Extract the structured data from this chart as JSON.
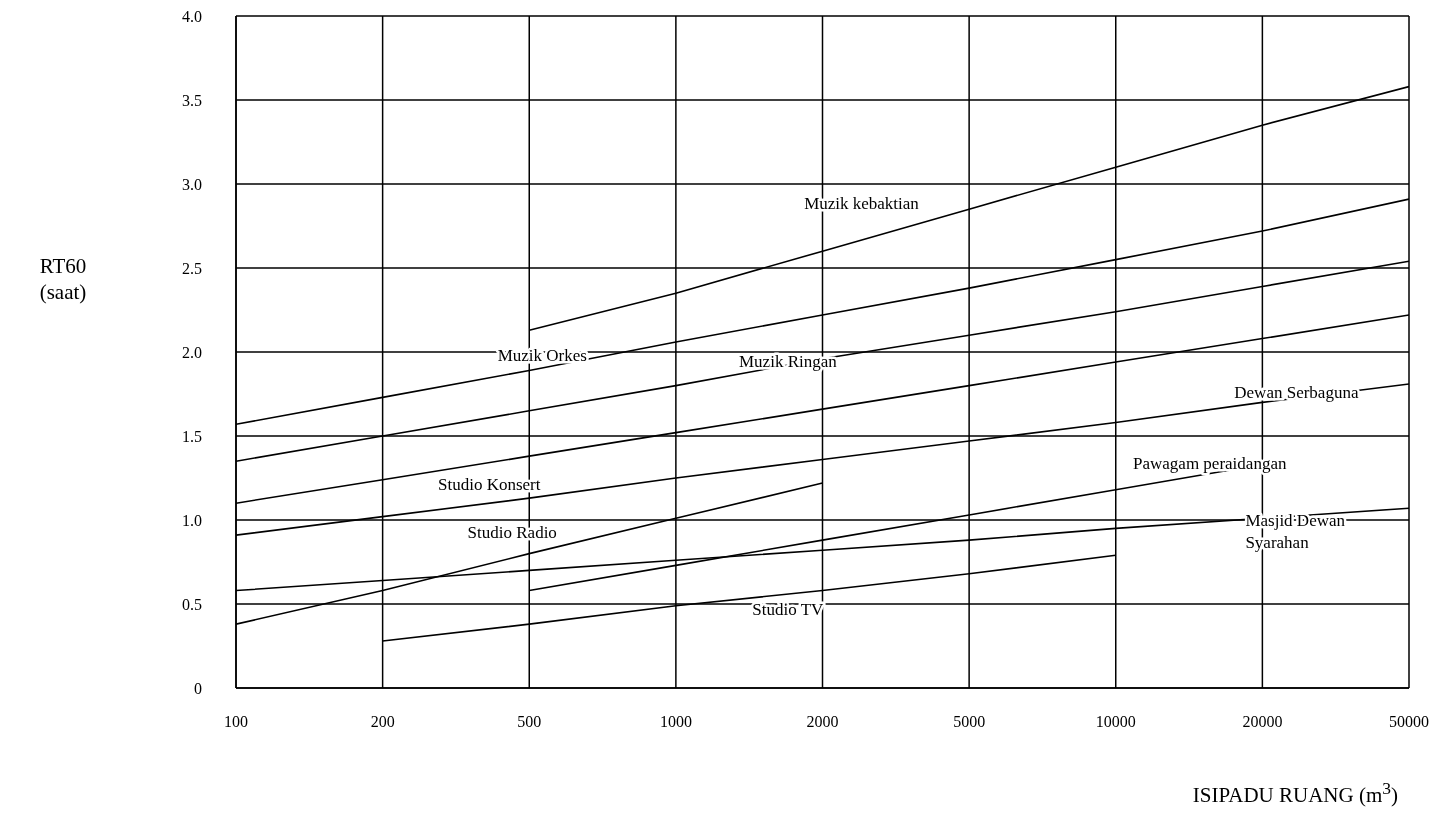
{
  "chart_data": {
    "type": "line",
    "xlabel": "ISIPADU RUANG (m$^{3}$)",
    "ylabel": "RT60 (saat)",
    "categories": [
      "100",
      "200",
      "500",
      "1000",
      "2000",
      "5000",
      "10000",
      "20000",
      "50000"
    ],
    "ylim": [
      0,
      4
    ],
    "yticks": [
      0,
      0.5,
      {
        "value": 1,
        "label": "1.0"
      },
      1.5,
      {
        "value": 2,
        "label": "2.0"
      },
      2.5,
      {
        "value": 3,
        "label": "3.0"
      },
      3.5,
      {
        "value": 4,
        "label": "4.0"
      }
    ],
    "grid": true,
    "legend": false,
    "series": [
      {
        "name": "Muzik kebaktian",
        "color": "#000000",
        "values": [
          null,
          null,
          2.13,
          2.35,
          2.6,
          2.85,
          3.1,
          3.35,
          3.58
        ]
      },
      {
        "name": "Muzik Orkes",
        "color": "#000000",
        "values": [
          1.57,
          1.73,
          1.89,
          2.06,
          2.22,
          2.38,
          2.55,
          2.72,
          2.91
        ]
      },
      {
        "name": "Muzik Ringan",
        "color": "#000000",
        "values": [
          1.35,
          1.5,
          1.65,
          1.8,
          1.96,
          2.1,
          2.24,
          2.39,
          2.54
        ]
      },
      {
        "name": "Studio Konsert",
        "color": "#000000",
        "values": [
          1.1,
          1.24,
          1.38,
          1.52,
          1.66,
          1.8,
          1.94,
          2.08,
          2.22
        ]
      },
      {
        "name": "Dewan Serbaguna",
        "color": "#000000",
        "values": [
          0.91,
          1.02,
          1.13,
          1.25,
          1.36,
          1.47,
          1.58,
          1.7,
          1.81
        ]
      },
      {
        "name": "Masjid Dewan Syarahan",
        "color": "#000000",
        "values": [
          0.58,
          0.64,
          0.7,
          0.76,
          0.82,
          0.88,
          0.95,
          1.01,
          1.07
        ]
      },
      {
        "name": "Studio Radio",
        "color": "#000000",
        "values": [
          0.38,
          0.58,
          0.8,
          1.01,
          1.22,
          null,
          null,
          null,
          null
        ]
      },
      {
        "name": "Studio TV",
        "color": "#000000",
        "values": [
          null,
          0.28,
          0.38,
          0.49,
          0.58,
          0.68,
          0.79,
          null,
          null
        ]
      },
      {
        "name": "Pawagam peraidangan",
        "color": "#000000",
        "values": [
          null,
          null,
          0.58,
          0.73,
          0.88,
          1.03,
          1.18,
          1.33,
          null
        ]
      }
    ]
  }
}
